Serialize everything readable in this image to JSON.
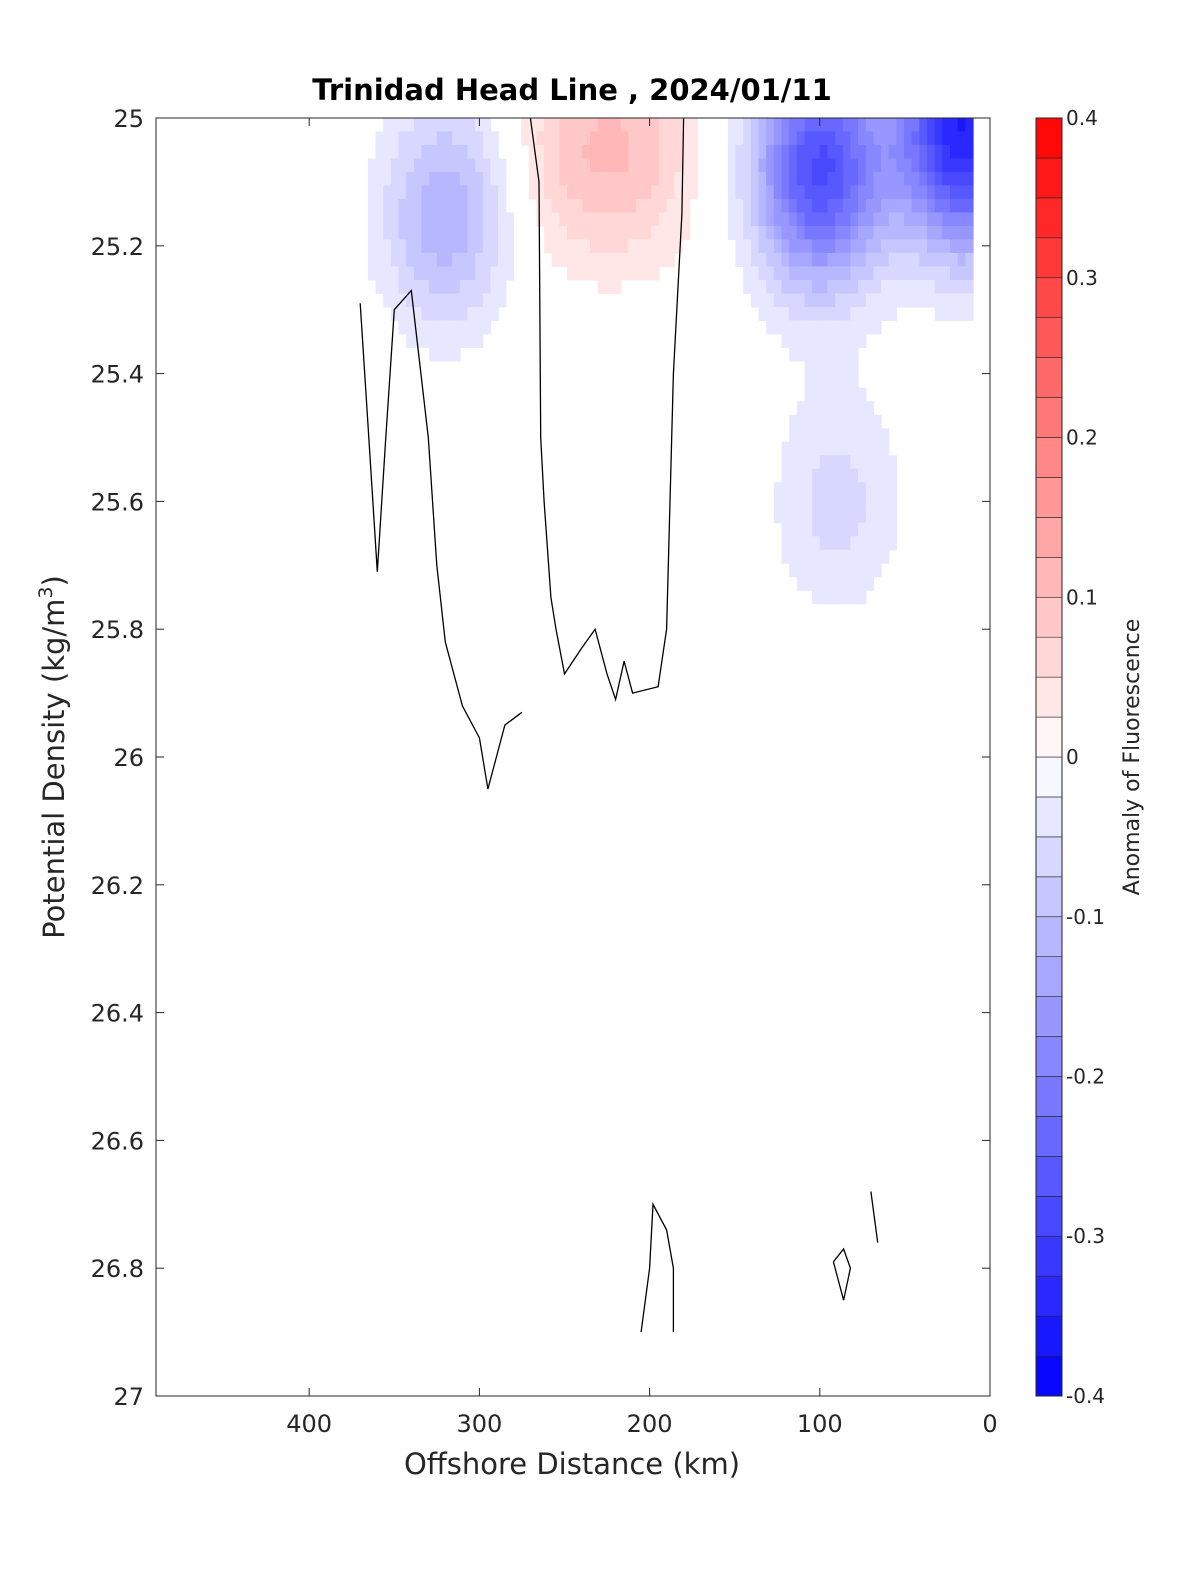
{
  "chart_data": {
    "type": "heatmap",
    "title": "Trinidad Head Line , 2024/01/11",
    "xlabel": "Offshore Distance (km)",
    "ylabel_main": "Potential Density (kg/m",
    "ylabel_sup": "3",
    "ylabel_close": ")",
    "colorbar_label": "Anomaly of Fluorescence",
    "xlim": [
      490,
      0
    ],
    "ylim": [
      27,
      25
    ],
    "x_reversed": true,
    "y_reversed": true,
    "xticks": [
      400,
      300,
      200,
      100,
      0
    ],
    "xtick_labels": [
      "400",
      "300",
      "200",
      "100",
      "0"
    ],
    "yticks": [
      25,
      25.2,
      25.4,
      25.6,
      25.8,
      26,
      26.2,
      26.4,
      26.6,
      26.8,
      27
    ],
    "ytick_labels": [
      "25",
      "25.2",
      "25.4",
      "25.6",
      "25.8",
      "26",
      "26.2",
      "26.4",
      "26.6",
      "26.8",
      "27"
    ],
    "clim": [
      -0.4,
      0.4
    ],
    "color_levels": 32,
    "colormap": "blue-white-red",
    "colorbar_ticks": [
      0.4,
      0.3,
      0.2,
      0.1,
      0,
      -0.1,
      -0.2,
      -0.3,
      -0.4
    ],
    "colorbar_tick_labels": [
      "0.4",
      "0.3",
      "0.2",
      "0.1",
      "0",
      "-0.1",
      "-0.2",
      "-0.3",
      "-0.4"
    ],
    "colors": {
      "negative": "#0000ff",
      "zero": "#ffffff",
      "positive": "#ff0000",
      "contour": "#000000"
    },
    "data_extent_x": [
      370,
      10
    ],
    "data_extent_y": [
      25,
      26.9
    ],
    "anomaly_features": [
      {
        "x": 320,
        "y": 25.15,
        "value": -0.12
      },
      {
        "x": 245,
        "y": 25.05,
        "value": 0.07
      },
      {
        "x": 205,
        "y": 25.05,
        "value": 0.07
      },
      {
        "x": 100,
        "y": 25.08,
        "value": -0.28
      },
      {
        "x": 15,
        "y": 25.02,
        "value": -0.35
      },
      {
        "x": 355,
        "y": 25.65,
        "value": 0.02
      },
      {
        "x": 90,
        "y": 25.6,
        "value": -0.06
      },
      {
        "x": 270,
        "y": 26.3,
        "value": -0.02
      },
      {
        "x": 160,
        "y": 26.3,
        "value": -0.02
      }
    ],
    "zero_contours": [
      [
        [
          370,
          25.29
        ],
        [
          365,
          25.5
        ],
        [
          360,
          25.71
        ],
        [
          355,
          25.5
        ],
        [
          350,
          25.3
        ],
        [
          340,
          25.27
        ],
        [
          330,
          25.5
        ],
        [
          325,
          25.7
        ],
        [
          320,
          25.82
        ],
        [
          310,
          25.92
        ],
        [
          300,
          25.97
        ],
        [
          295,
          26.05
        ],
        [
          290,
          26.0
        ],
        [
          285,
          25.95
        ],
        [
          280,
          25.94
        ],
        [
          275,
          25.93
        ]
      ],
      [
        [
          270,
          25.0
        ],
        [
          265,
          25.1
        ],
        [
          264,
          25.5
        ],
        [
          262,
          25.6
        ],
        [
          258,
          25.75
        ],
        [
          255,
          25.8
        ],
        [
          250,
          25.87
        ],
        [
          240,
          25.83
        ],
        [
          232,
          25.8
        ],
        [
          225,
          25.87
        ],
        [
          220,
          25.91
        ],
        [
          215,
          25.85
        ],
        [
          210,
          25.9
        ],
        [
          195,
          25.89
        ],
        [
          190,
          25.8
        ],
        [
          188,
          25.6
        ],
        [
          186,
          25.4
        ],
        [
          181,
          25.15
        ],
        [
          180,
          25.0
        ]
      ],
      [
        [
          205,
          26.9
        ],
        [
          200,
          26.8
        ],
        [
          198,
          26.7
        ],
        [
          190,
          26.74
        ],
        [
          186,
          26.8
        ],
        [
          186,
          26.9
        ]
      ],
      [
        [
          92,
          26.79
        ],
        [
          86,
          26.85
        ],
        [
          82,
          26.8
        ],
        [
          86,
          26.77
        ],
        [
          92,
          26.79
        ]
      ],
      [
        [
          70,
          26.68
        ],
        [
          68,
          26.72
        ],
        [
          66,
          26.76
        ],
        [
          69,
          26.7
        ]
      ]
    ]
  }
}
